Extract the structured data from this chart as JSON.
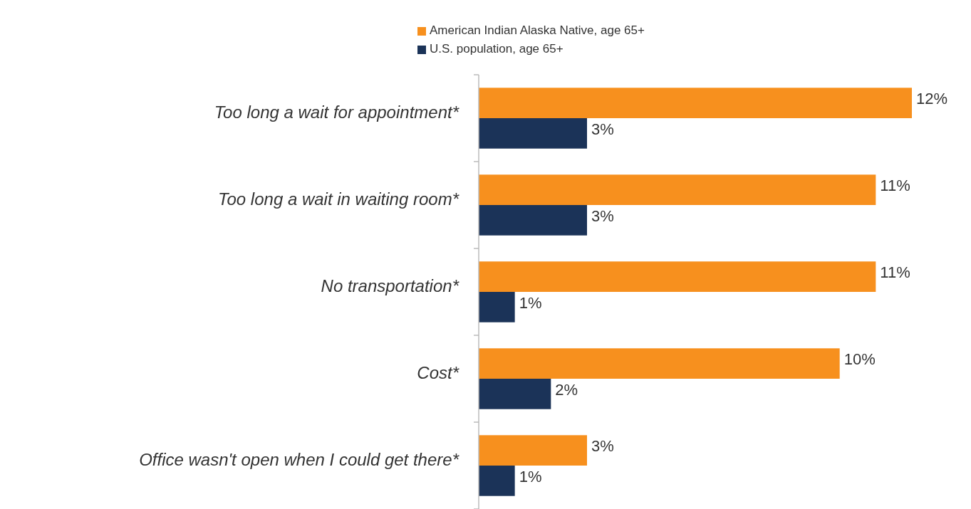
{
  "chart_data": {
    "type": "bar",
    "orientation": "horizontal",
    "categories": [
      "Too long a wait for appointment*",
      "Too long a wait in waiting room*",
      "No transportation*",
      "Cost*",
      "Office wasn't open when I could get there*"
    ],
    "series": [
      {
        "name": "American Indian Alaska Native, age 65+",
        "color": "#f7901e",
        "values": [
          12,
          11,
          11,
          10,
          3
        ],
        "value_labels": [
          "12%",
          "11%",
          "11%",
          "10%",
          "3%"
        ]
      },
      {
        "name": "U.S. population, age 65+",
        "color": "#1b3358",
        "values": [
          3,
          3,
          1,
          2,
          1
        ],
        "value_labels": [
          "3%",
          "3%",
          "1%",
          "2%",
          "1%"
        ]
      }
    ],
    "legend": "top"
  }
}
